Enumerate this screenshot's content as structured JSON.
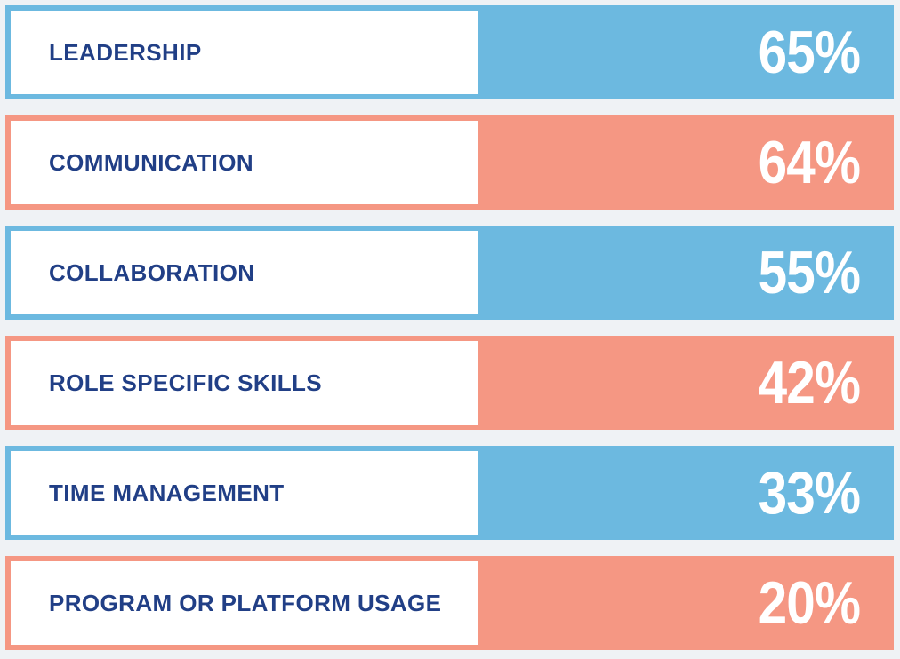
{
  "chart_data": {
    "type": "bar",
    "categories": [
      "LEADERSHIP",
      "COMMUNICATION",
      "COLLABORATION",
      "ROLE SPECIFIC SKILLS",
      "TIME MANAGEMENT",
      "PROGRAM OR PLATFORM USAGE"
    ],
    "values": [
      65,
      64,
      55,
      42,
      33,
      20
    ],
    "value_labels": [
      "65%",
      "64%",
      "55%",
      "42%",
      "33%",
      "20%"
    ],
    "unit": "%",
    "title": "",
    "xlabel": "",
    "ylabel": "",
    "grid": false,
    "legend": "none"
  },
  "colors": {
    "background": "#eff2f5",
    "row_colors": [
      "#6cb9e0",
      "#f59783",
      "#6cb9e0",
      "#f59783",
      "#6cb9e0",
      "#f59783"
    ],
    "label_box": "#ffffff",
    "label_text": "#213f86",
    "value_text": "#ffffff"
  }
}
